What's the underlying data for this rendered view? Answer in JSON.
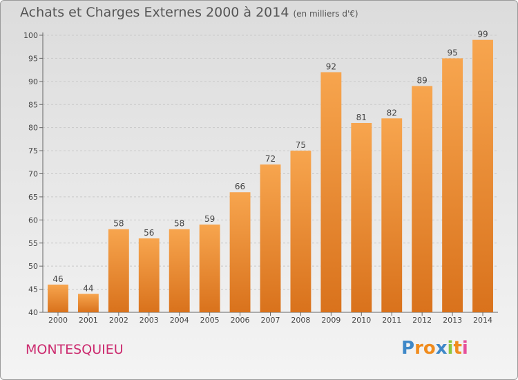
{
  "header": {
    "title": "Achats et Charges Externes 2000 à 2014",
    "unit": "(en milliers d'€)"
  },
  "footer": {
    "commune": "MONTESQUIEU",
    "logo": "Proxiti"
  },
  "colors": {
    "bar_light": "#f7a54e",
    "bar_dark": "#d9721c",
    "commune": "#cc2b6f"
  },
  "chart_data": {
    "type": "bar",
    "title": "Achats et Charges Externes 2000 à 2014",
    "subtitle": "(en milliers d'€)",
    "xlabel": "",
    "ylabel": "",
    "categories": [
      "2000",
      "2001",
      "2002",
      "2003",
      "2004",
      "2005",
      "2006",
      "2007",
      "2008",
      "2009",
      "2010",
      "2011",
      "2012",
      "2013",
      "2014"
    ],
    "values": [
      46,
      44,
      58,
      56,
      58,
      59,
      66,
      72,
      75,
      92,
      81,
      82,
      89,
      95,
      99
    ],
    "ylim": [
      40,
      100
    ],
    "yticks": [
      40,
      45,
      50,
      55,
      60,
      65,
      70,
      75,
      80,
      85,
      90,
      95,
      100
    ],
    "grid": "horizontal dashed",
    "legend": "none"
  }
}
